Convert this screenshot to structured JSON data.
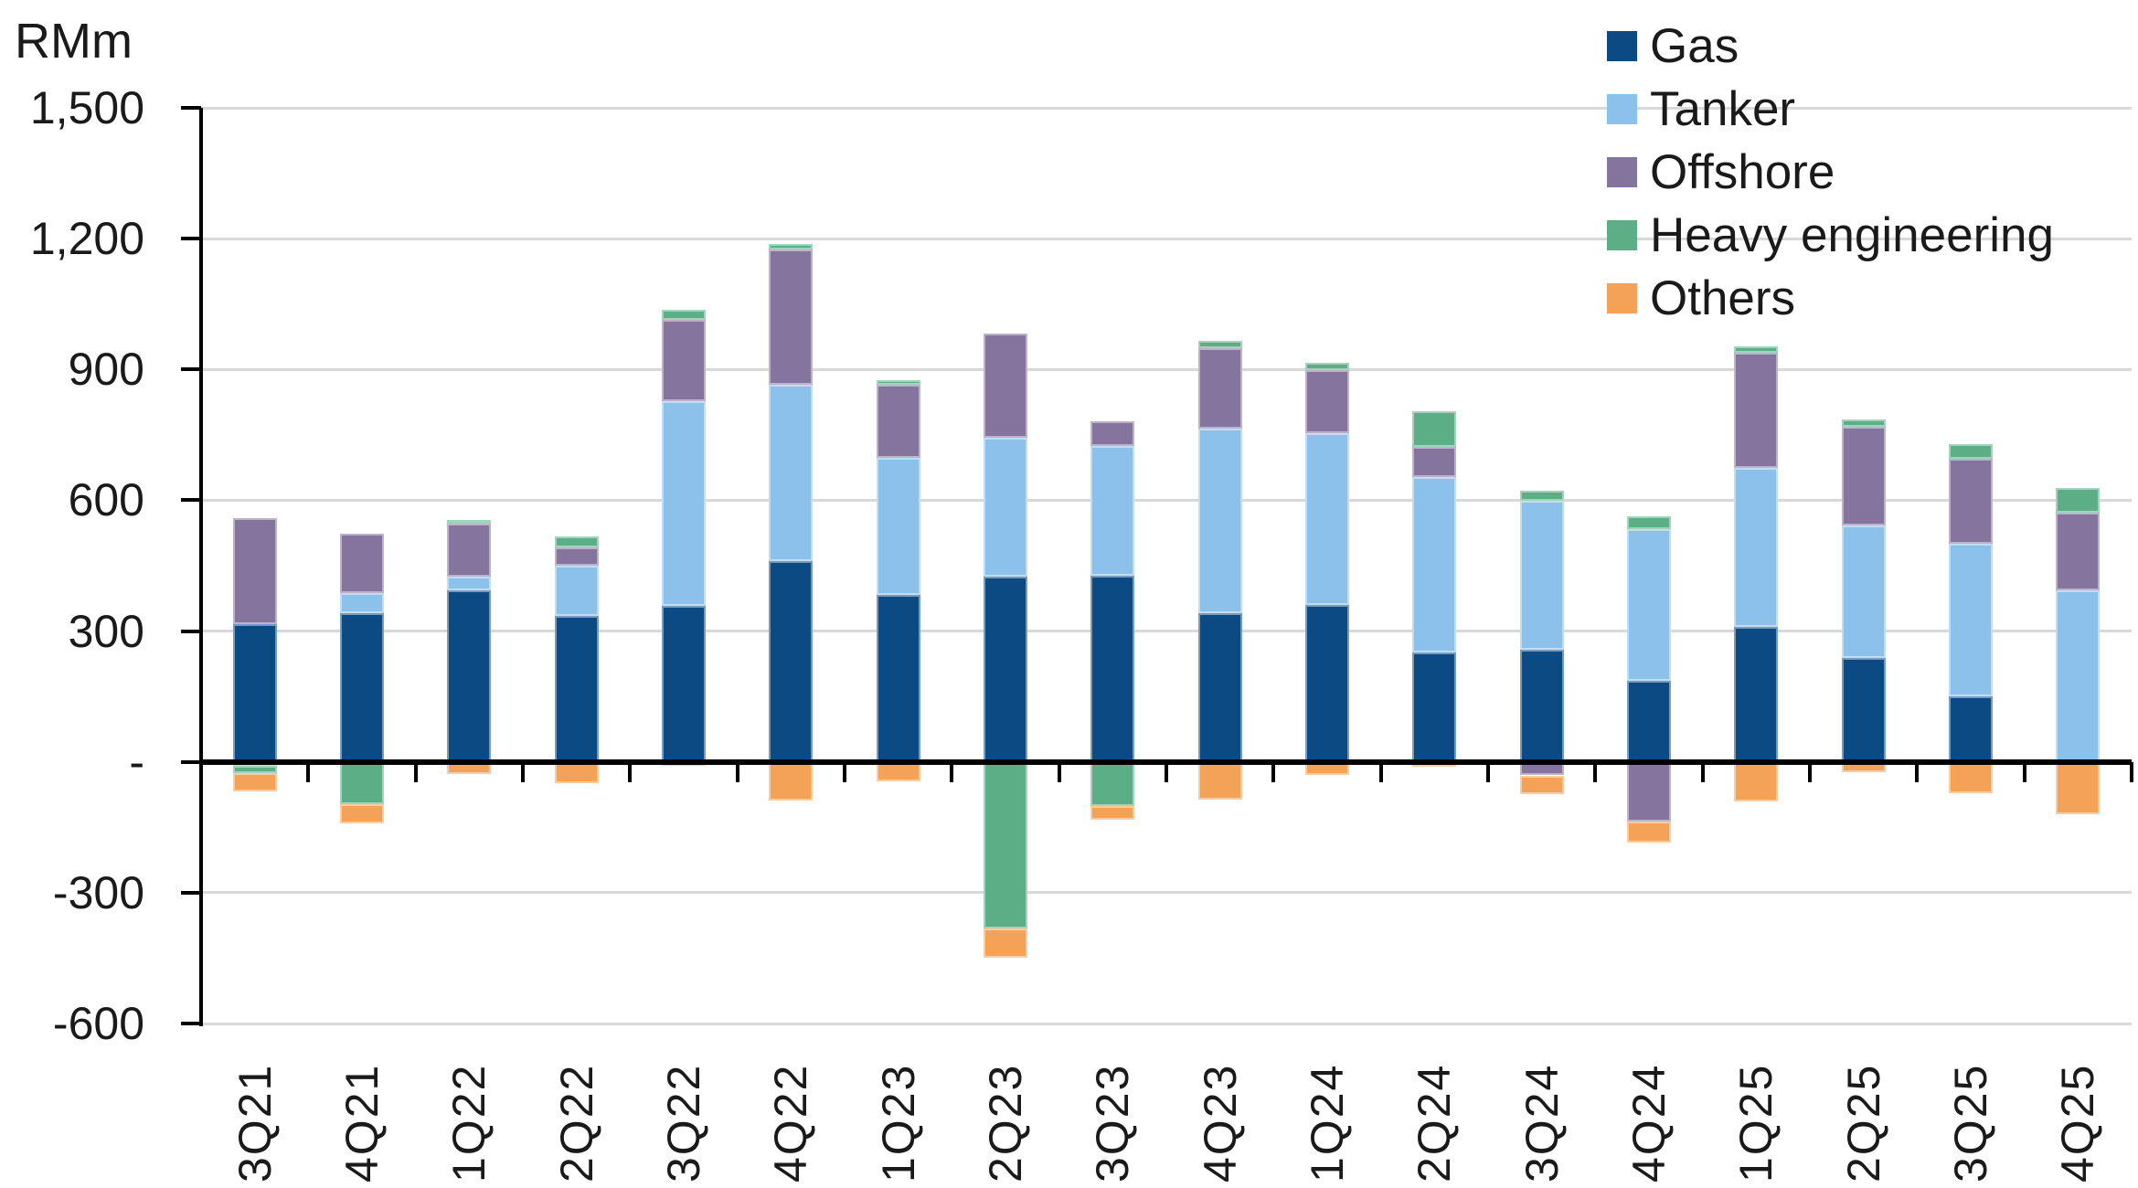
{
  "chart": {
    "unit_label": "RMm"
  },
  "chart_data": {
    "type": "bar",
    "stacked": true,
    "title": "",
    "ylabel": "RMm",
    "xlabel": "",
    "legend_position": "top-right",
    "grid": true,
    "gridline_color": "#d9d9d9",
    "axis_color": "#000000",
    "y_axis": {
      "min": -600,
      "max": 1500,
      "step": 300,
      "ticks": [
        {
          "value": 1500,
          "label": "1,500"
        },
        {
          "value": 1200,
          "label": "1,200"
        },
        {
          "value": 900,
          "label": "900"
        },
        {
          "value": 600,
          "label": "600"
        },
        {
          "value": 300,
          "label": "300"
        },
        {
          "value": 0,
          "label": "-"
        },
        {
          "value": -300,
          "label": "-300"
        },
        {
          "value": -600,
          "label": "-600"
        }
      ]
    },
    "categories": [
      "3Q21",
      "4Q21",
      "1Q22",
      "2Q22",
      "3Q22",
      "4Q22",
      "1Q23",
      "2Q23",
      "3Q23",
      "4Q23",
      "1Q24",
      "2Q24",
      "3Q24",
      "4Q24",
      "1Q25",
      "2Q25",
      "3Q25",
      "4Q25"
    ],
    "series": [
      {
        "name": "Gas",
        "color": "#0c4a83",
        "values": [
          315,
          341,
          394,
          335,
          357,
          461,
          383,
          424,
          426,
          341,
          360,
          251,
          257,
          186,
          310,
          238,
          151,
          0
        ]
      },
      {
        "name": "Tanker",
        "color": "#8cc1ec",
        "values": [
          -8,
          46,
          31,
          115,
          470,
          404,
          314,
          320,
          299,
          424,
          394,
          402,
          341,
          347,
          365,
          304,
          350,
          393
        ]
      },
      {
        "name": "Offshore",
        "color": "#85749e",
        "values": [
          243,
          136,
          121,
          41,
          187,
          310,
          167,
          239,
          57,
          184,
          144,
          69,
          -31,
          -136,
          263,
          226,
          195,
          178
        ]
      },
      {
        "name": "Heavy engineering",
        "color": "#5cae87",
        "values": [
          -17,
          -98,
          8,
          27,
          23,
          13,
          12,
          -383,
          -101,
          16,
          17,
          83,
          23,
          30,
          14,
          17,
          33,
          57
        ]
      },
      {
        "name": "Others",
        "color": "#f4a258",
        "values": [
          -42,
          -44,
          -27,
          -49,
          -8,
          -89,
          -44,
          -67,
          -31,
          -87,
          -29,
          -11,
          -43,
          -49,
          -91,
          -23,
          -71,
          -120
        ]
      }
    ]
  }
}
